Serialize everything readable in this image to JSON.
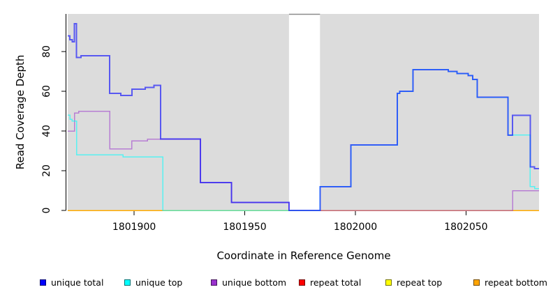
{
  "chart_data": {
    "type": "line",
    "subtype": "step-coverage-plot",
    "xlabel": "Coordinate in Reference Genome",
    "ylabel": "Read Coverage Depth",
    "xlim": [
      1801870,
      1802083
    ],
    "ylim": [
      0,
      99
    ],
    "x_ticks": [
      "1801900",
      "1801950",
      "1802000",
      "1802050"
    ],
    "x_tick_values": [
      1801900,
      1801950,
      1802000,
      1802050
    ],
    "y_ticks": [
      "0",
      "20",
      "40",
      "60",
      "80"
    ],
    "y_tick_values": [
      0,
      20,
      40,
      60,
      80
    ],
    "grid": false,
    "panel_bg": "#DCDCDC",
    "shaded_regions": [
      [
        1801870,
        1801970
      ],
      [
        1801984,
        1802083
      ]
    ],
    "gap_region": [
      1801970,
      1801984
    ],
    "gap_top_border_color": "#8a8a8a",
    "series": [
      {
        "name": "repeat total",
        "color": "#FF0000",
        "opacity": 0.85,
        "width": 1.5,
        "steps": [
          [
            1801870,
            0
          ]
        ]
      },
      {
        "name": "repeat top",
        "color": "#FFFF00",
        "opacity": 0.85,
        "width": 1.5,
        "steps": [
          [
            1801870,
            0
          ]
        ]
      },
      {
        "name": "repeat bottom",
        "color": "#FFA500",
        "opacity": 0.9,
        "width": 1.5,
        "steps": [
          [
            1801870,
            0
          ]
        ]
      },
      {
        "name": "unique bottom",
        "color": "#9932CC",
        "opacity": 0.55,
        "width": 1.5,
        "steps": [
          [
            1801870,
            40
          ],
          [
            1801873,
            49
          ],
          [
            1801875,
            50
          ],
          [
            1801889,
            31
          ],
          [
            1801899,
            35
          ],
          [
            1801906,
            36
          ],
          [
            1801930,
            14
          ],
          [
            1801944,
            4
          ],
          [
            1801970,
            0
          ],
          [
            1802071,
            10
          ]
        ]
      },
      {
        "name": "unique top",
        "color": "#00FFFF",
        "opacity": 0.6,
        "width": 1.5,
        "steps": [
          [
            1801870,
            48
          ],
          [
            1801871,
            46
          ],
          [
            1801872,
            45
          ],
          [
            1801874,
            28
          ],
          [
            1801895,
            27
          ],
          [
            1801913,
            0
          ],
          [
            1801984,
            12
          ],
          [
            1801998,
            33
          ],
          [
            1802019,
            59
          ],
          [
            1802020,
            60
          ],
          [
            1802026,
            71
          ],
          [
            1802042,
            70
          ],
          [
            1802046,
            69
          ],
          [
            1802051,
            68
          ],
          [
            1802053,
            66
          ],
          [
            1802055,
            57
          ],
          [
            1802069,
            38
          ],
          [
            1802079,
            12
          ],
          [
            1802081,
            11
          ]
        ]
      },
      {
        "name": "unique total",
        "color": "#0000FF",
        "opacity": 0.6,
        "width": 2,
        "steps": [
          [
            1801870,
            88
          ],
          [
            1801871,
            86
          ],
          [
            1801872,
            85
          ],
          [
            1801873,
            94
          ],
          [
            1801874,
            77
          ],
          [
            1801876,
            78
          ],
          [
            1801889,
            59
          ],
          [
            1801894,
            58
          ],
          [
            1801899,
            61
          ],
          [
            1801905,
            62
          ],
          [
            1801909,
            63
          ],
          [
            1801912,
            36
          ],
          [
            1801930,
            14
          ],
          [
            1801944,
            4
          ],
          [
            1801970,
            0
          ],
          [
            1801984,
            12
          ],
          [
            1801998,
            33
          ],
          [
            1802019,
            59
          ],
          [
            1802020,
            60
          ],
          [
            1802026,
            71
          ],
          [
            1802042,
            70
          ],
          [
            1802046,
            69
          ],
          [
            1802051,
            68
          ],
          [
            1802053,
            66
          ],
          [
            1802055,
            57
          ],
          [
            1802069,
            38
          ],
          [
            1802071,
            48
          ],
          [
            1802079,
            22
          ],
          [
            1802081,
            21
          ]
        ]
      }
    ],
    "legend": {
      "position": "bottom",
      "items": [
        {
          "label": "unique total",
          "color": "#0000FF"
        },
        {
          "label": "unique top",
          "color": "#00FFFF"
        },
        {
          "label": "unique bottom",
          "color": "#9932CC"
        },
        {
          "label": "repeat total",
          "color": "#FF0000"
        },
        {
          "label": "repeat top",
          "color": "#FFFF00"
        },
        {
          "label": "repeat bottom",
          "color": "#FFA500"
        }
      ]
    }
  }
}
